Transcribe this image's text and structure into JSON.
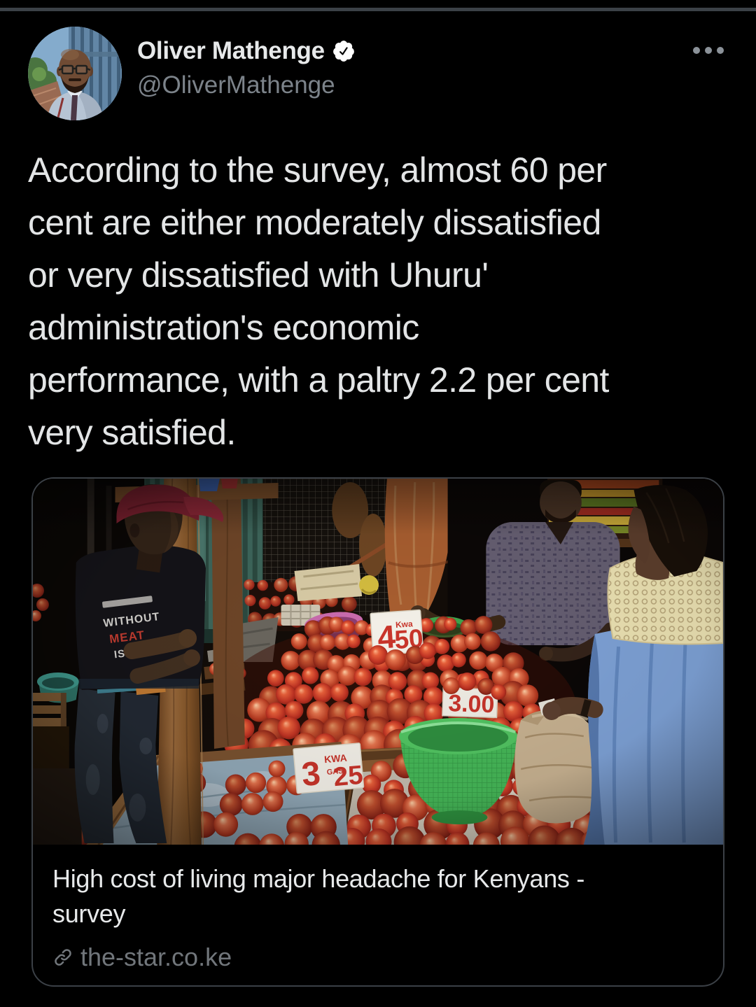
{
  "header": {
    "display_name": "Oliver Mathenge",
    "handle": "@OliverMathenge"
  },
  "tweet": {
    "text": "According to the survey, almost 60 per\ncent are either moderately dissatisfied\nor very dissatisfied with Uhuru'\nadministration's economic\nperformance, with a paltry 2.2 per cent\nvery satisfied."
  },
  "card": {
    "title": "High cost of living major headache for Kenyans -\nsurvey",
    "domain": "the-star.co.ke"
  },
  "photo": {
    "sign_a": {
      "num": "4",
      "unit": "Kwa",
      "price": "50"
    },
    "sign_b": {
      "price": "3.00"
    },
    "sign_c": {
      "num": "3",
      "unit": "KWA",
      "sub": "GAS",
      "price": "25"
    },
    "shirt": {
      "line1": "WITHOUT",
      "line2": "MEAT",
      "line3": "ISN'T"
    }
  },
  "colors": {
    "background": "#000000",
    "text_primary": "#e7e9ea",
    "text_secondary": "#71767b",
    "card_border": "#3b4046",
    "sign_red": "#c8342a",
    "dress_blue": "#7fa3d8",
    "basket_green": "#46b858"
  }
}
